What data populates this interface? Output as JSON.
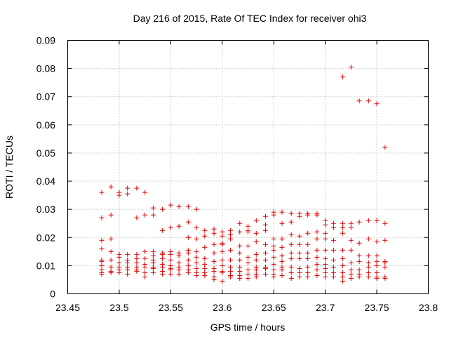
{
  "chart_data": {
    "type": "scatter",
    "title": "Day 216 of 2015, Rate Of TEC Index for receiver ohi3",
    "xlabel": "GPS time / hours",
    "ylabel": "ROTI / TECUs",
    "xlim": [
      23.45,
      23.8
    ],
    "ylim": [
      0,
      0.09
    ],
    "grid": true,
    "marker": "+",
    "color": "#e00000",
    "x_ticks": [
      "23.45",
      "23.5",
      "23.55",
      "23.6",
      "23.65",
      "23.7",
      "23.75",
      "23.8"
    ],
    "y_ticks": [
      "0",
      "0.01",
      "0.02",
      "0.03",
      "0.04",
      "0.05",
      "0.06",
      "0.07",
      "0.08",
      "0.09"
    ],
    "series": [
      {
        "name": "ROTI",
        "points": [
          [
            23.483,
            0.036
          ],
          [
            23.483,
            0.027
          ],
          [
            23.483,
            0.019
          ],
          [
            23.483,
            0.016
          ],
          [
            23.483,
            0.012
          ],
          [
            23.483,
            0.0115
          ],
          [
            23.483,
            0.01
          ],
          [
            23.483,
            0.0085
          ],
          [
            23.483,
            0.0075
          ],
          [
            23.483,
            0.007
          ],
          [
            23.492,
            0.038
          ],
          [
            23.492,
            0.028
          ],
          [
            23.492,
            0.0195
          ],
          [
            23.492,
            0.015
          ],
          [
            23.492,
            0.012
          ],
          [
            23.492,
            0.0095
          ],
          [
            23.492,
            0.008
          ],
          [
            23.492,
            0.0075
          ],
          [
            23.5,
            0.036
          ],
          [
            23.5,
            0.035
          ],
          [
            23.5,
            0.014
          ],
          [
            23.5,
            0.013
          ],
          [
            23.5,
            0.011
          ],
          [
            23.5,
            0.0095
          ],
          [
            23.5,
            0.0085
          ],
          [
            23.5,
            0.0075
          ],
          [
            23.508,
            0.0375
          ],
          [
            23.508,
            0.0355
          ],
          [
            23.508,
            0.014
          ],
          [
            23.508,
            0.012
          ],
          [
            23.508,
            0.011
          ],
          [
            23.508,
            0.0095
          ],
          [
            23.508,
            0.0085
          ],
          [
            23.508,
            0.007
          ],
          [
            23.517,
            0.0375
          ],
          [
            23.517,
            0.027
          ],
          [
            23.517,
            0.014
          ],
          [
            23.517,
            0.0125
          ],
          [
            23.517,
            0.011
          ],
          [
            23.517,
            0.0095
          ],
          [
            23.517,
            0.0085
          ],
          [
            23.517,
            0.008
          ],
          [
            23.525,
            0.036
          ],
          [
            23.525,
            0.028
          ],
          [
            23.525,
            0.015
          ],
          [
            23.525,
            0.0125
          ],
          [
            23.525,
            0.0105
          ],
          [
            23.525,
            0.0095
          ],
          [
            23.525,
            0.0075
          ],
          [
            23.525,
            0.006
          ],
          [
            23.533,
            0.0305
          ],
          [
            23.533,
            0.028
          ],
          [
            23.533,
            0.015
          ],
          [
            23.533,
            0.0135
          ],
          [
            23.533,
            0.012
          ],
          [
            23.533,
            0.011
          ],
          [
            23.533,
            0.0095
          ],
          [
            23.533,
            0.009
          ],
          [
            23.533,
            0.0075
          ],
          [
            23.542,
            0.03
          ],
          [
            23.542,
            0.0225
          ],
          [
            23.542,
            0.0145
          ],
          [
            23.542,
            0.014
          ],
          [
            23.542,
            0.0125
          ],
          [
            23.542,
            0.0105
          ],
          [
            23.542,
            0.0095
          ],
          [
            23.542,
            0.008
          ],
          [
            23.542,
            0.007
          ],
          [
            23.55,
            0.0315
          ],
          [
            23.55,
            0.0235
          ],
          [
            23.55,
            0.015
          ],
          [
            23.55,
            0.014
          ],
          [
            23.55,
            0.012
          ],
          [
            23.55,
            0.01
          ],
          [
            23.55,
            0.009
          ],
          [
            23.55,
            0.0085
          ],
          [
            23.55,
            0.007
          ],
          [
            23.558,
            0.031
          ],
          [
            23.558,
            0.024
          ],
          [
            23.558,
            0.0145
          ],
          [
            23.558,
            0.0135
          ],
          [
            23.558,
            0.011
          ],
          [
            23.558,
            0.0095
          ],
          [
            23.558,
            0.0085
          ],
          [
            23.558,
            0.007
          ],
          [
            23.567,
            0.031
          ],
          [
            23.567,
            0.0255
          ],
          [
            23.567,
            0.02
          ],
          [
            23.567,
            0.0155
          ],
          [
            23.567,
            0.0145
          ],
          [
            23.567,
            0.012
          ],
          [
            23.567,
            0.01
          ],
          [
            23.567,
            0.0085
          ],
          [
            23.567,
            0.0075
          ],
          [
            23.575,
            0.03
          ],
          [
            23.575,
            0.0235
          ],
          [
            23.575,
            0.0195
          ],
          [
            23.575,
            0.015
          ],
          [
            23.575,
            0.013
          ],
          [
            23.575,
            0.011
          ],
          [
            23.575,
            0.009
          ],
          [
            23.575,
            0.0075
          ],
          [
            23.575,
            0.0065
          ],
          [
            23.583,
            0.0225
          ],
          [
            23.583,
            0.0205
          ],
          [
            23.583,
            0.0165
          ],
          [
            23.583,
            0.0125
          ],
          [
            23.583,
            0.0105
          ],
          [
            23.583,
            0.009
          ],
          [
            23.583,
            0.0075
          ],
          [
            23.583,
            0.0065
          ],
          [
            23.592,
            0.023
          ],
          [
            23.592,
            0.0215
          ],
          [
            23.592,
            0.0175
          ],
          [
            23.592,
            0.0145
          ],
          [
            23.592,
            0.0115
          ],
          [
            23.592,
            0.009
          ],
          [
            23.592,
            0.008
          ],
          [
            23.592,
            0.006
          ],
          [
            23.592,
            0.005
          ],
          [
            23.6,
            0.022
          ],
          [
            23.6,
            0.0205
          ],
          [
            23.6,
            0.018
          ],
          [
            23.6,
            0.0175
          ],
          [
            23.6,
            0.015
          ],
          [
            23.6,
            0.012
          ],
          [
            23.6,
            0.01
          ],
          [
            23.6,
            0.008
          ],
          [
            23.6,
            0.0075
          ],
          [
            23.6,
            0.0045
          ],
          [
            23.608,
            0.0225
          ],
          [
            23.608,
            0.021
          ],
          [
            23.608,
            0.0195
          ],
          [
            23.608,
            0.0155
          ],
          [
            23.608,
            0.012
          ],
          [
            23.608,
            0.0095
          ],
          [
            23.608,
            0.008
          ],
          [
            23.608,
            0.0065
          ],
          [
            23.608,
            0.006
          ],
          [
            23.617,
            0.025
          ],
          [
            23.617,
            0.022
          ],
          [
            23.617,
            0.017
          ],
          [
            23.617,
            0.0145
          ],
          [
            23.617,
            0.012
          ],
          [
            23.617,
            0.0095
          ],
          [
            23.617,
            0.008
          ],
          [
            23.617,
            0.0065
          ],
          [
            23.617,
            0.0055
          ],
          [
            23.625,
            0.024
          ],
          [
            23.625,
            0.0225
          ],
          [
            23.625,
            0.022
          ],
          [
            23.625,
            0.017
          ],
          [
            23.625,
            0.013
          ],
          [
            23.625,
            0.011
          ],
          [
            23.625,
            0.0085
          ],
          [
            23.625,
            0.007
          ],
          [
            23.625,
            0.0055
          ],
          [
            23.633,
            0.026
          ],
          [
            23.633,
            0.0215
          ],
          [
            23.633,
            0.0185
          ],
          [
            23.633,
            0.014
          ],
          [
            23.633,
            0.012
          ],
          [
            23.633,
            0.0095
          ],
          [
            23.633,
            0.0085
          ],
          [
            23.633,
            0.007
          ],
          [
            23.633,
            0.006
          ],
          [
            23.642,
            0.0275
          ],
          [
            23.642,
            0.0245
          ],
          [
            23.642,
            0.0225
          ],
          [
            23.642,
            0.0175
          ],
          [
            23.642,
            0.0145
          ],
          [
            23.642,
            0.012
          ],
          [
            23.642,
            0.0095
          ],
          [
            23.642,
            0.009
          ],
          [
            23.642,
            0.007
          ],
          [
            23.65,
            0.029
          ],
          [
            23.65,
            0.028
          ],
          [
            23.65,
            0.0195
          ],
          [
            23.65,
            0.017
          ],
          [
            23.65,
            0.0155
          ],
          [
            23.65,
            0.013
          ],
          [
            23.65,
            0.0105
          ],
          [
            23.65,
            0.0085
          ],
          [
            23.65,
            0.007
          ],
          [
            23.65,
            0.006
          ],
          [
            23.658,
            0.029
          ],
          [
            23.658,
            0.025
          ],
          [
            23.658,
            0.0195
          ],
          [
            23.658,
            0.0165
          ],
          [
            23.658,
            0.0135
          ],
          [
            23.658,
            0.0115
          ],
          [
            23.658,
            0.0095
          ],
          [
            23.658,
            0.0085
          ],
          [
            23.658,
            0.0065
          ],
          [
            23.667,
            0.0285
          ],
          [
            23.667,
            0.0255
          ],
          [
            23.667,
            0.021
          ],
          [
            23.667,
            0.0175
          ],
          [
            23.667,
            0.0145
          ],
          [
            23.667,
            0.0125
          ],
          [
            23.667,
            0.0095
          ],
          [
            23.667,
            0.0075
          ],
          [
            23.667,
            0.0055
          ],
          [
            23.675,
            0.0285
          ],
          [
            23.675,
            0.0275
          ],
          [
            23.675,
            0.0205
          ],
          [
            23.675,
            0.0175
          ],
          [
            23.675,
            0.0145
          ],
          [
            23.675,
            0.0125
          ],
          [
            23.675,
            0.009
          ],
          [
            23.675,
            0.0075
          ],
          [
            23.675,
            0.006
          ],
          [
            23.683,
            0.0285
          ],
          [
            23.683,
            0.028
          ],
          [
            23.683,
            0.0215
          ],
          [
            23.683,
            0.0175
          ],
          [
            23.683,
            0.0145
          ],
          [
            23.683,
            0.0125
          ],
          [
            23.683,
            0.0095
          ],
          [
            23.683,
            0.0075
          ],
          [
            23.683,
            0.006
          ],
          [
            23.692,
            0.0285
          ],
          [
            23.692,
            0.028
          ],
          [
            23.692,
            0.022
          ],
          [
            23.692,
            0.0195
          ],
          [
            23.692,
            0.0155
          ],
          [
            23.692,
            0.013
          ],
          [
            23.692,
            0.0105
          ],
          [
            23.692,
            0.0085
          ],
          [
            23.692,
            0.0065
          ],
          [
            23.7,
            0.026
          ],
          [
            23.7,
            0.0245
          ],
          [
            23.7,
            0.0215
          ],
          [
            23.7,
            0.0195
          ],
          [
            23.7,
            0.0155
          ],
          [
            23.7,
            0.0125
          ],
          [
            23.7,
            0.0105
          ],
          [
            23.7,
            0.009
          ],
          [
            23.7,
            0.0075
          ],
          [
            23.7,
            0.006
          ],
          [
            23.708,
            0.025
          ],
          [
            23.708,
            0.0235
          ],
          [
            23.708,
            0.019
          ],
          [
            23.708,
            0.0155
          ],
          [
            23.708,
            0.012
          ],
          [
            23.708,
            0.0095
          ],
          [
            23.708,
            0.0075
          ],
          [
            23.708,
            0.006
          ],
          [
            23.717,
            0.077
          ],
          [
            23.717,
            0.025
          ],
          [
            23.717,
            0.0235
          ],
          [
            23.717,
            0.0215
          ],
          [
            23.717,
            0.0155
          ],
          [
            23.717,
            0.0125
          ],
          [
            23.717,
            0.01
          ],
          [
            23.717,
            0.0075
          ],
          [
            23.717,
            0.006
          ],
          [
            23.717,
            0.0045
          ],
          [
            23.725,
            0.0805
          ],
          [
            23.725,
            0.025
          ],
          [
            23.725,
            0.0235
          ],
          [
            23.725,
            0.019
          ],
          [
            23.725,
            0.0155
          ],
          [
            23.725,
            0.011
          ],
          [
            23.725,
            0.0085
          ],
          [
            23.725,
            0.007
          ],
          [
            23.725,
            0.0055
          ],
          [
            23.733,
            0.0685
          ],
          [
            23.733,
            0.0255
          ],
          [
            23.733,
            0.018
          ],
          [
            23.733,
            0.0135
          ],
          [
            23.733,
            0.0115
          ],
          [
            23.733,
            0.0085
          ],
          [
            23.733,
            0.007
          ],
          [
            23.733,
            0.006
          ],
          [
            23.742,
            0.0685
          ],
          [
            23.742,
            0.026
          ],
          [
            23.742,
            0.0195
          ],
          [
            23.742,
            0.0135
          ],
          [
            23.742,
            0.011
          ],
          [
            23.742,
            0.0095
          ],
          [
            23.742,
            0.0075
          ],
          [
            23.742,
            0.006
          ],
          [
            23.75,
            0.0675
          ],
          [
            23.75,
            0.026
          ],
          [
            23.75,
            0.0185
          ],
          [
            23.75,
            0.0135
          ],
          [
            23.75,
            0.0115
          ],
          [
            23.75,
            0.01
          ],
          [
            23.75,
            0.0075
          ],
          [
            23.75,
            0.006
          ],
          [
            23.75,
            0.0055
          ],
          [
            23.758,
            0.052
          ],
          [
            23.758,
            0.025
          ],
          [
            23.758,
            0.019
          ],
          [
            23.758,
            0.0115
          ],
          [
            23.758,
            0.011
          ],
          [
            23.758,
            0.0095
          ],
          [
            23.758,
            0.006
          ],
          [
            23.758,
            0.0055
          ]
        ]
      }
    ]
  }
}
